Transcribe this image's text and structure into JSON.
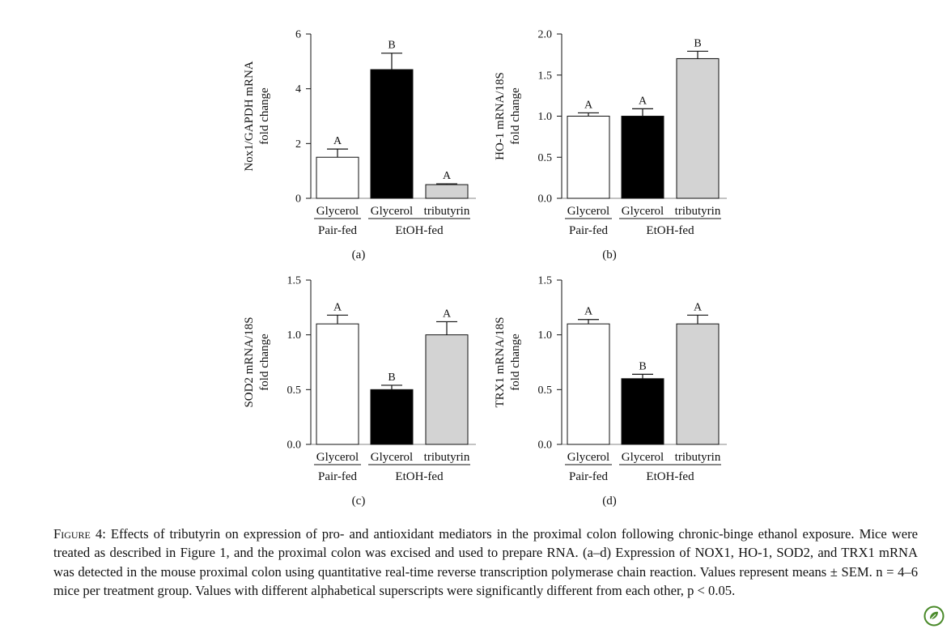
{
  "colors": {
    "pair_fed_glycerol": "#ffffff",
    "etoh_glycerol": "#000000",
    "etoh_tributyrin": "#d3d3d3",
    "axis": "#111111",
    "logo": "#4a8a2a"
  },
  "chart_data": [
    {
      "panel": "(a)",
      "type": "bar",
      "categories": [
        "Glycerol",
        "Glycerol",
        "tributyrin"
      ],
      "groups": [
        {
          "label": "Pair-fed",
          "span": [
            0,
            0
          ]
        },
        {
          "label": "EtOH-fed",
          "span": [
            1,
            2
          ]
        }
      ],
      "values": [
        1.5,
        4.7,
        0.5
      ],
      "errors": [
        0.3,
        0.6,
        0.03
      ],
      "letters": [
        "A",
        "B",
        "A"
      ],
      "ylabel": [
        "Nox1/GAPDH mRNA",
        "fold change"
      ],
      "ylim": [
        0,
        6
      ],
      "yticks": [
        0,
        2,
        4,
        6
      ],
      "ytick_labels": [
        "0",
        "2",
        "4",
        "6"
      ]
    },
    {
      "panel": "(b)",
      "type": "bar",
      "categories": [
        "Glycerol",
        "Glycerol",
        "tributyrin"
      ],
      "groups": [
        {
          "label": "Pair-fed",
          "span": [
            0,
            0
          ]
        },
        {
          "label": "EtOH-fed",
          "span": [
            1,
            2
          ]
        }
      ],
      "values": [
        1.0,
        1.0,
        1.7
      ],
      "errors": [
        0.04,
        0.09,
        0.09
      ],
      "letters": [
        "A",
        "A",
        "B"
      ],
      "ylabel": [
        "HO-1 mRNA/18S",
        "fold change"
      ],
      "ylim": [
        0,
        2.0
      ],
      "yticks": [
        0,
        0.5,
        1.0,
        1.5,
        2.0
      ],
      "ytick_labels": [
        "0.0",
        "0.5",
        "1.0",
        "1.5",
        "2.0"
      ]
    },
    {
      "panel": "(c)",
      "type": "bar",
      "categories": [
        "Glycerol",
        "Glycerol",
        "tributyrin"
      ],
      "groups": [
        {
          "label": "Pair-fed",
          "span": [
            0,
            0
          ]
        },
        {
          "label": "EtOH-fed",
          "span": [
            1,
            2
          ]
        }
      ],
      "values": [
        1.1,
        0.5,
        1.0
      ],
      "errors": [
        0.08,
        0.04,
        0.12
      ],
      "letters": [
        "A",
        "B",
        "A"
      ],
      "ylabel": [
        "SOD2 mRNA/18S",
        "fold change"
      ],
      "ylim": [
        0,
        1.5
      ],
      "yticks": [
        0,
        0.5,
        1.0,
        1.5
      ],
      "ytick_labels": [
        "0.0",
        "0.5",
        "1.0",
        "1.5"
      ]
    },
    {
      "panel": "(d)",
      "type": "bar",
      "categories": [
        "Glycerol",
        "Glycerol",
        "tributyrin"
      ],
      "groups": [
        {
          "label": "Pair-fed",
          "span": [
            0,
            0
          ]
        },
        {
          "label": "EtOH-fed",
          "span": [
            1,
            2
          ]
        }
      ],
      "values": [
        1.1,
        0.6,
        1.1
      ],
      "errors": [
        0.04,
        0.04,
        0.08
      ],
      "letters": [
        "A",
        "B",
        "A"
      ],
      "ylabel": [
        "TRX1 mRNA/18S",
        "fold change"
      ],
      "ylim": [
        0,
        1.5
      ],
      "yticks": [
        0,
        0.5,
        1.0,
        1.5
      ],
      "ytick_labels": [
        "0.0",
        "0.5",
        "1.0",
        "1.5"
      ]
    }
  ],
  "caption": {
    "label": "Figure 4:",
    "text": "Effects of tributyrin on expression of pro- and antioxidant mediators in the proximal colon following chronic-binge ethanol exposure. Mice were treated as described in Figure 1, and the proximal colon was excised and used to prepare RNA. (a–d) Expression of NOX1, HO-1, SOD2, and TRX1 mRNA was detected in the mouse proximal colon using quantitative real-time reverse transcription polymerase chain reaction. Values represent means ± SEM. n = 4–6 mice per treatment group. Values with different alphabetical superscripts were significantly different from each other, p < 0.05."
  }
}
